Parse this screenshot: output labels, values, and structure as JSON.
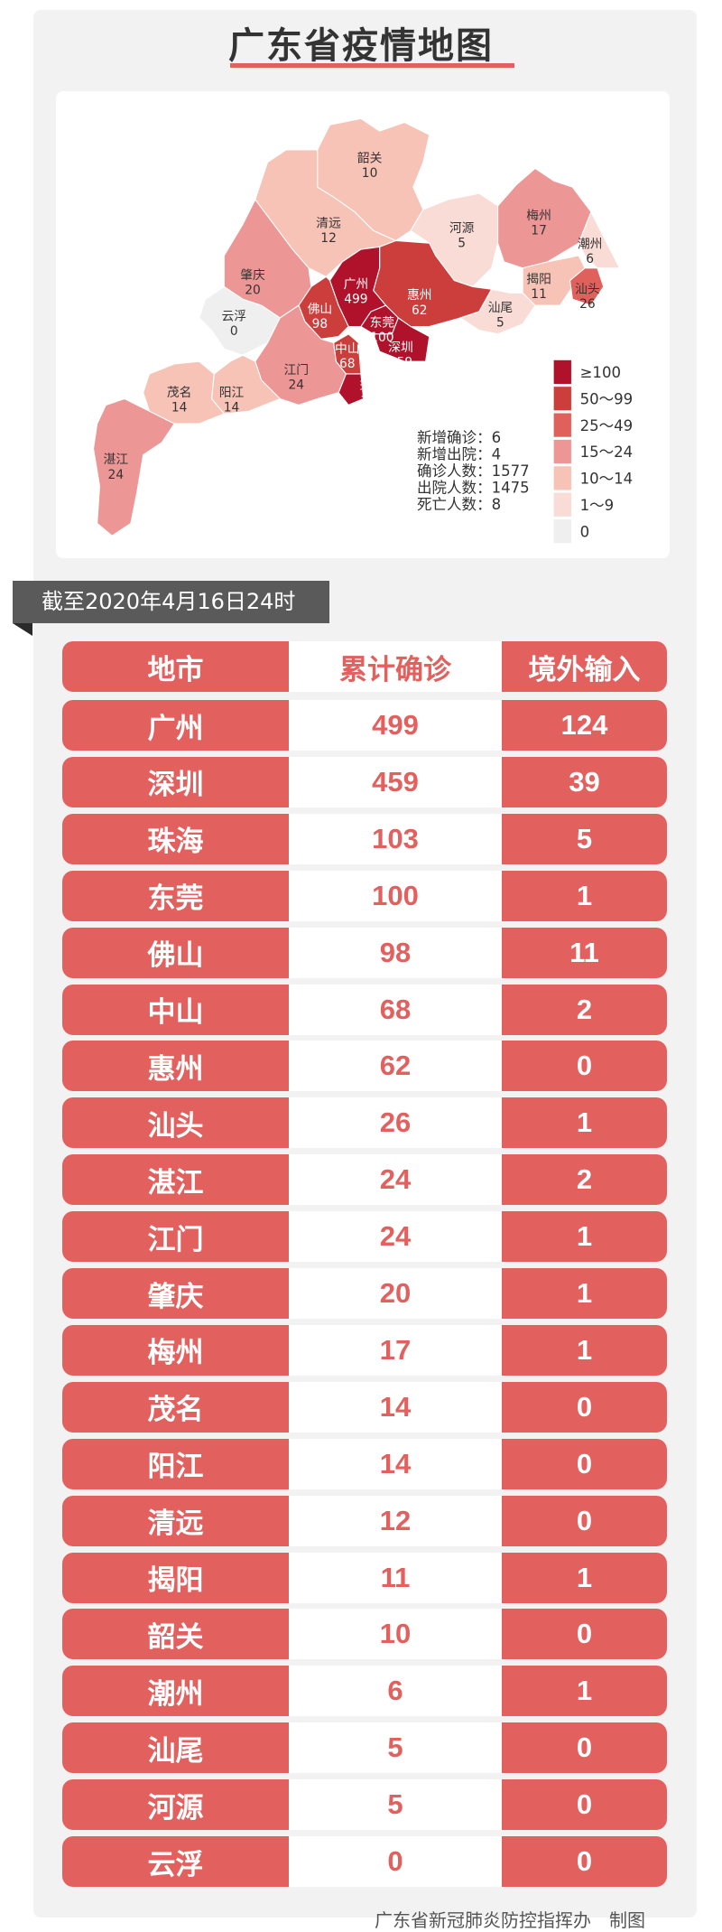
{
  "title": "广东省疫情地图",
  "colors": {
    "accent": "#e2605e",
    "bins": [
      "#b1122b",
      "#cc3e3c",
      "#e0605c",
      "#ec9796",
      "#f6c3b6",
      "#fadcd7",
      "#f0efef"
    ]
  },
  "map": {
    "regions": [
      {
        "name": "韶关",
        "value": "10"
      },
      {
        "name": "清远",
        "value": "12"
      },
      {
        "name": "河源",
        "value": "5"
      },
      {
        "name": "梅州",
        "value": "17"
      },
      {
        "name": "潮州",
        "value": "6"
      },
      {
        "name": "揭阳",
        "value": "11"
      },
      {
        "name": "汕头",
        "value": "26"
      },
      {
        "name": "惠州",
        "value": "62"
      },
      {
        "name": "广州",
        "value": "499"
      },
      {
        "name": "东莞",
        "value": "100"
      },
      {
        "name": "深圳",
        "value": "459"
      },
      {
        "name": "佛山",
        "value": "98"
      },
      {
        "name": "肇庆",
        "value": "20"
      },
      {
        "name": "云浮",
        "value": "0"
      },
      {
        "name": "汕尾",
        "value": "5"
      },
      {
        "name": "中山",
        "value": "68"
      },
      {
        "name": "珠海",
        "value": "103"
      },
      {
        "name": "江门",
        "value": "24"
      },
      {
        "name": "阳江",
        "value": "14"
      },
      {
        "name": "茂名",
        "value": "14"
      },
      {
        "name": "湛江",
        "value": "24"
      }
    ],
    "legend": [
      "≥100",
      "50～99",
      "25～49",
      "15～24",
      "10～14",
      "1～9",
      "0"
    ],
    "stats": [
      "新增确诊：6",
      "新增出院：4",
      "确诊人数：1577",
      "出院人数：1475",
      "死亡人数：8"
    ]
  },
  "date_banner": "截至2020年4月16日24时",
  "table": {
    "headers": [
      "地市",
      "累计确诊",
      "境外输入"
    ],
    "rows": [
      [
        "广州",
        "499",
        "124"
      ],
      [
        "深圳",
        "459",
        "39"
      ],
      [
        "珠海",
        "103",
        "5"
      ],
      [
        "东莞",
        "100",
        "1"
      ],
      [
        "佛山",
        "98",
        "11"
      ],
      [
        "中山",
        "68",
        "2"
      ],
      [
        "惠州",
        "62",
        "0"
      ],
      [
        "汕头",
        "26",
        "1"
      ],
      [
        "湛江",
        "24",
        "2"
      ],
      [
        "江门",
        "24",
        "1"
      ],
      [
        "肇庆",
        "20",
        "1"
      ],
      [
        "梅州",
        "17",
        "1"
      ],
      [
        "茂名",
        "14",
        "0"
      ],
      [
        "阳江",
        "14",
        "0"
      ],
      [
        "清远",
        "12",
        "0"
      ],
      [
        "揭阳",
        "11",
        "1"
      ],
      [
        "韶关",
        "10",
        "0"
      ],
      [
        "潮州",
        "6",
        "1"
      ],
      [
        "汕尾",
        "5",
        "0"
      ],
      [
        "河源",
        "5",
        "0"
      ],
      [
        "云浮",
        "0",
        "0"
      ]
    ]
  },
  "footer": "广东省新冠肺炎防控指挥办　制图"
}
